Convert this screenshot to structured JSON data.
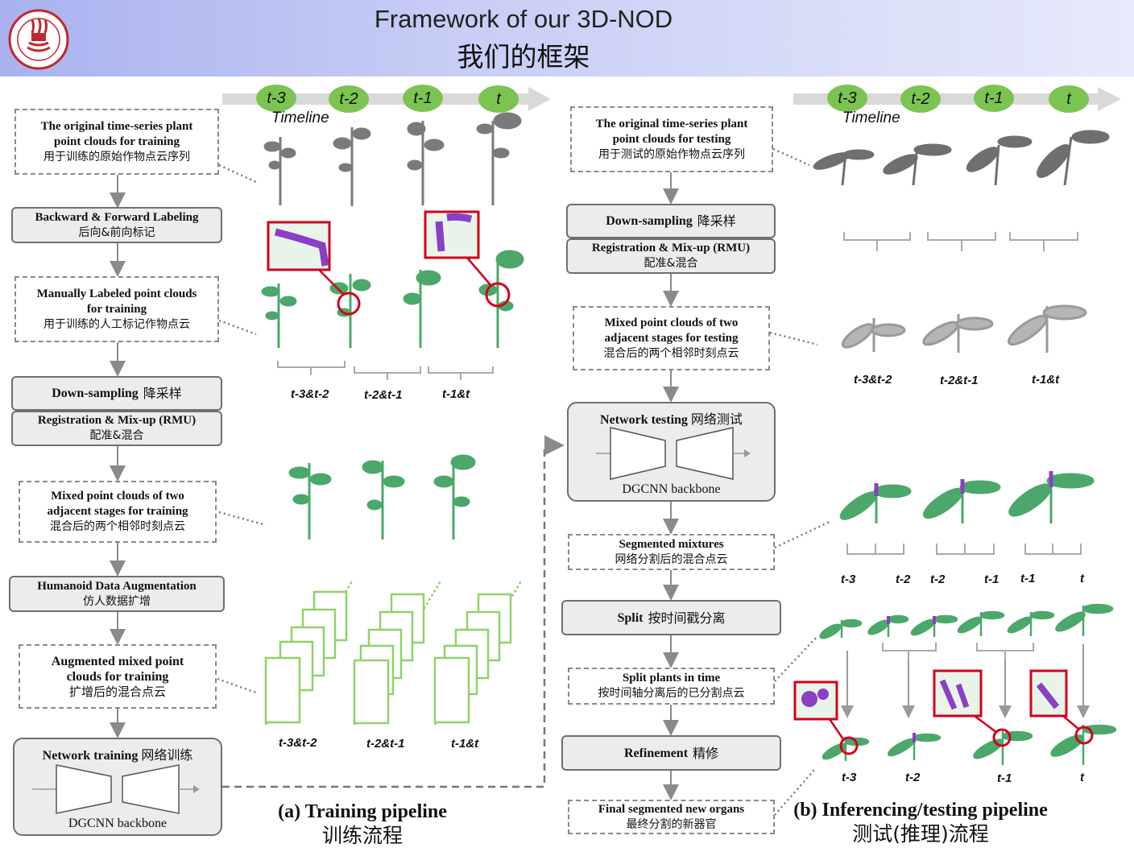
{
  "header": {
    "title_en": "Framework of our 3D-NOD",
    "title_zh": "我们的框架",
    "logo_icon": "university-seal-icon"
  },
  "colors": {
    "pill": "#7cc451",
    "plant_green": "#4ba86a",
    "plant_gray": "#6f6f6f",
    "organ_purple": "#8a3fc4",
    "highlight_red": "#d0021b"
  },
  "timeline": {
    "label": "Timeline",
    "steps": [
      "t-3",
      "t-2",
      "t-1",
      "t"
    ]
  },
  "training": {
    "original": {
      "en": "The original time-series plant point clouds for training",
      "zh": "用于训练的原始作物点云序列"
    },
    "labeling": {
      "en": "Backward & Forward Labeling",
      "zh": "后向&前向标记"
    },
    "manual": {
      "en": "Manually Labeled point clouds for training",
      "zh": "用于训练的人工标记作物点云"
    },
    "downsampling": {
      "en": "Down-sampling",
      "zh": "降采样"
    },
    "rmu": {
      "en": "Registration & Mix-up (RMU)",
      "zh": "配准&混合"
    },
    "mixed": {
      "en": "Mixed point clouds of two adjacent stages for training",
      "zh": "混合后的两个相邻时刻点云"
    },
    "hda": {
      "en": "Humanoid Data Augmentation",
      "zh": "仿人数据扩增"
    },
    "augmented": {
      "en": "Augmented mixed point clouds for training",
      "zh": "扩增后的混合点云"
    },
    "network": {
      "en": "Network training",
      "zh": "网络训练",
      "backbone": "DGCNN backbone"
    },
    "pair_labels": [
      "t-3&t-2",
      "t-2&t-1",
      "t-1&t"
    ],
    "caption": {
      "en": "(a) Training pipeline",
      "zh": "训练流程"
    }
  },
  "testing": {
    "original": {
      "en": "The original time-series plant point clouds for testing",
      "zh": "用于测试的原始作物点云序列"
    },
    "downsampling": {
      "en": "Down-sampling",
      "zh": "降采样"
    },
    "rmu": {
      "en": "Registration & Mix-up (RMU)",
      "zh": "配准&混合"
    },
    "mixed": {
      "en": "Mixed point clouds of two adjacent stages for testing",
      "zh": "混合后的两个相邻时刻点云"
    },
    "network": {
      "en": "Network testing",
      "zh": "网络测试",
      "backbone": "DGCNN backbone"
    },
    "segmented": {
      "en": "Segmented mixtures",
      "zh": "网络分割后的混合点云"
    },
    "split": {
      "en": "Split",
      "zh": "按时间戳分离"
    },
    "split_plants": {
      "en": "Split plants in time",
      "zh": "按时间轴分离后的已分割点云"
    },
    "refinement": {
      "en": "Refinement",
      "zh": "精修"
    },
    "final": {
      "en": "Final segmented new organs",
      "zh": "最终分割的新器官"
    },
    "pair_labels": [
      "t-3&t-2",
      "t-2&t-1",
      "t-1&t"
    ],
    "split_labels": [
      "t-3",
      "t-2",
      "t-2",
      "t-1",
      "t-1",
      "t"
    ],
    "final_labels": [
      "t-3",
      "t-2",
      "t-1",
      "t"
    ],
    "caption": {
      "en": "(b) Inferencing/testing pipeline",
      "zh": "测试(推理)流程"
    }
  }
}
